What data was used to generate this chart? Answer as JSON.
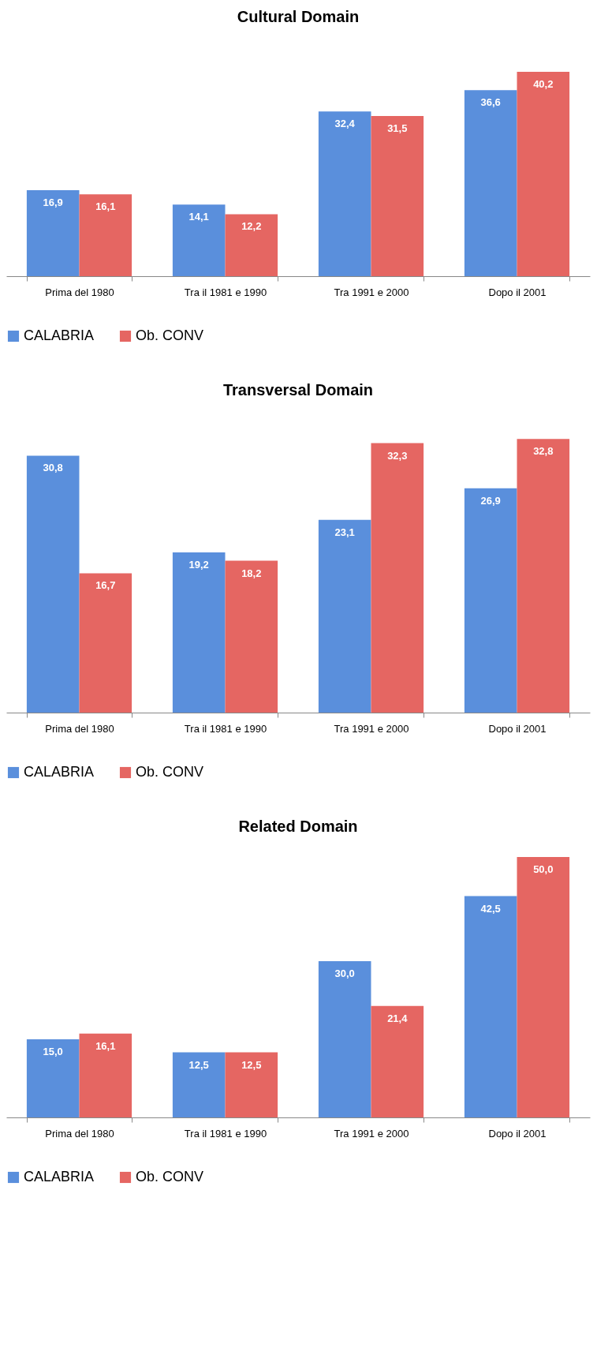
{
  "chart_data": [
    {
      "type": "bar",
      "title": "Cultural Domain",
      "categories": [
        "Prima del 1980",
        "Tra il 1981 e 1990",
        "Tra 1991 e 2000",
        "Dopo il 2001"
      ],
      "series": [
        {
          "name": "CALABRIA",
          "color": "#5a8fdc",
          "values": [
            16.9,
            14.1,
            32.4,
            36.6
          ],
          "value_labels": [
            "16,9",
            "14,1",
            "32,4",
            "36,6"
          ]
        },
        {
          "name": "Ob. CONV",
          "color": "#e56662",
          "values": [
            16.1,
            12.2,
            31.5,
            40.2
          ],
          "value_labels": [
            "16,1",
            "12,2",
            "31,5",
            "40,2"
          ]
        }
      ],
      "legend": "bottom",
      "tick_labels": "x"
    },
    {
      "type": "bar",
      "title": "Transversal Domain",
      "categories": [
        "Prima del 1980",
        "Tra il 1981 e 1990",
        "Tra 1991 e 2000",
        "Dopo il 2001"
      ],
      "series": [
        {
          "name": "CALABRIA",
          "color": "#5a8fdc",
          "values": [
            30.8,
            19.2,
            23.1,
            26.9
          ],
          "value_labels": [
            "30,8",
            "19,2",
            "23,1",
            "26,9"
          ]
        },
        {
          "name": "Ob. CONV",
          "color": "#e56662",
          "values": [
            16.7,
            18.2,
            32.3,
            32.8
          ],
          "value_labels": [
            "16,7",
            "18,2",
            "32,3",
            "32,8"
          ]
        }
      ],
      "legend": "bottom",
      "tick_labels": "x"
    },
    {
      "type": "bar",
      "title": "Related Domain",
      "categories": [
        "Prima del 1980",
        "Tra il 1981 e 1990",
        "Tra 1991 e 2000",
        "Dopo il 2001"
      ],
      "series": [
        {
          "name": "CALABRIA",
          "color": "#5a8fdc",
          "values": [
            15.0,
            12.5,
            30.0,
            42.5
          ],
          "value_labels": [
            "15,0",
            "12,5",
            "30,0",
            "42,5"
          ]
        },
        {
          "name": "Ob. CONV",
          "color": "#e56662",
          "values": [
            16.1,
            12.5,
            21.4,
            50.0
          ],
          "value_labels": [
            "16,1",
            "12,5",
            "21,4",
            "50,0"
          ]
        }
      ],
      "legend": "bottom",
      "tick_labels": "x"
    }
  ]
}
